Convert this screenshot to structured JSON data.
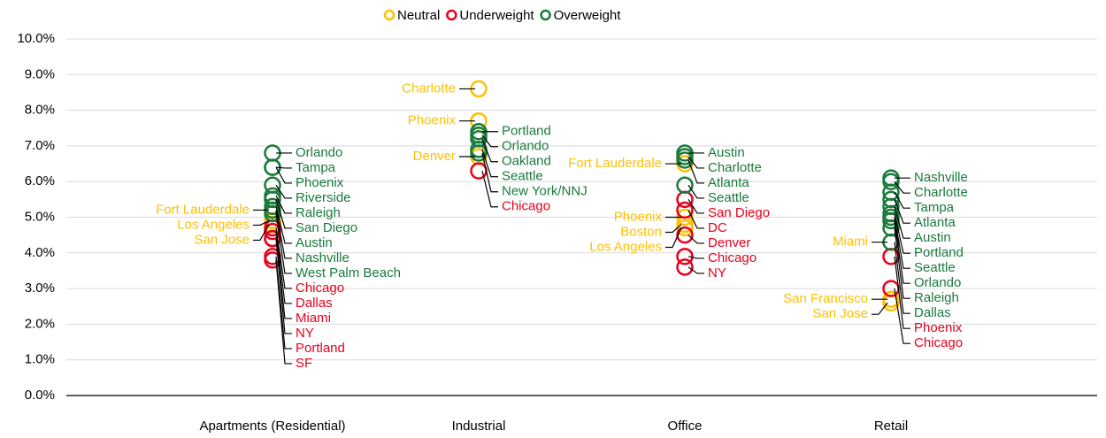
{
  "chart_data": {
    "type": "scatter",
    "categories": [
      "Apartments (Residential)",
      "Industrial",
      "Office",
      "Retail"
    ],
    "ylim": [
      0,
      10
    ],
    "yticks": [
      {
        "value": 0,
        "label": "0.0%"
      },
      {
        "value": 1,
        "label": "1.0%"
      },
      {
        "value": 2,
        "label": "2.0%"
      },
      {
        "value": 3,
        "label": "3.0%"
      },
      {
        "value": 4,
        "label": "4.0%"
      },
      {
        "value": 5,
        "label": "5.0%"
      },
      {
        "value": 6,
        "label": "6.0%"
      },
      {
        "value": 7,
        "label": "7.0%"
      },
      {
        "value": 8,
        "label": "8.0%"
      },
      {
        "value": 9,
        "label": "9.0%"
      },
      {
        "value": 10,
        "label": "10.0%"
      }
    ],
    "grid": true,
    "legend": "top",
    "series": [
      {
        "name": "Neutral",
        "color": "#ffc000",
        "x": [
          "Apartments (Residential)",
          "Apartments (Residential)",
          "Apartments (Residential)",
          "Industrial",
          "Industrial",
          "Industrial",
          "Office",
          "Office",
          "Office",
          "Office",
          "Retail",
          "Retail",
          "Retail"
        ],
        "labels": [
          "Fort Lauderdale",
          "Los Angeles",
          "San Jose",
          "Charlotte",
          "Phoenix",
          "Denver",
          "Fort Lauderdale",
          "Phoenix",
          "Boston",
          "Los Angeles",
          "Miami",
          "San Francisco",
          "San Jose"
        ],
        "values": [
          5.2,
          4.9,
          4.8,
          8.6,
          7.7,
          6.7,
          6.5,
          5.0,
          4.8,
          4.7,
          4.3,
          2.7,
          2.6
        ]
      },
      {
        "name": "Underweight",
        "color": "#e8001c",
        "x": [
          "Apartments (Residential)",
          "Apartments (Residential)",
          "Apartments (Residential)",
          "Apartments (Residential)",
          "Apartments (Residential)",
          "Apartments (Residential)",
          "Industrial",
          "Office",
          "Office",
          "Office",
          "Office",
          "Office",
          "Retail",
          "Retail"
        ],
        "labels": [
          "Dallas",
          "Miami",
          "Portland",
          "SF",
          "Chicago",
          "NY",
          "Chicago",
          "San Diego",
          "DC",
          "Denver",
          "Chicago",
          "NY",
          "Phoenix",
          "Chicago"
        ],
        "values": [
          4.6,
          4.4,
          3.9,
          3.8,
          4.7,
          4.4,
          6.3,
          5.5,
          5.2,
          4.5,
          3.9,
          3.6,
          3.9,
          3.0
        ]
      },
      {
        "name": "Overweight",
        "color": "#1a7a3c",
        "x": [
          "Apartments (Residential)",
          "Apartments (Residential)",
          "Apartments (Residential)",
          "Apartments (Residential)",
          "Apartments (Residential)",
          "Apartments (Residential)",
          "Apartments (Residential)",
          "Apartments (Residential)",
          "Apartments (Residential)",
          "Industrial",
          "Industrial",
          "Industrial",
          "Industrial",
          "Industrial",
          "Office",
          "Office",
          "Office",
          "Office",
          "Retail",
          "Retail",
          "Retail",
          "Retail",
          "Retail",
          "Retail",
          "Retail",
          "Retail",
          "Retail",
          "Retail"
        ],
        "labels": [
          "Orlando",
          "Tampa",
          "Phoenix",
          "Riverside",
          "Raleigh",
          "San Diego",
          "Austin",
          "Nashville",
          "West Palm Beach",
          "Portland",
          "Orlando",
          "Oakland",
          "New York/NNJ",
          "Seattle",
          "Austin",
          "Charlotte",
          "Atlanta",
          "Seattle",
          "Nashville",
          "Charlotte",
          "Tampa",
          "Atlanta",
          "Austin",
          "Portland",
          "Seattle",
          "Orlando",
          "Raleigh",
          "Dallas"
        ],
        "values": [
          6.8,
          6.4,
          6.4,
          5.9,
          5.6,
          5.5,
          5.3,
          5.2,
          5.1,
          7.4,
          7.3,
          7.2,
          6.8,
          6.9,
          6.8,
          6.7,
          6.6,
          5.9,
          6.1,
          6.0,
          5.7,
          5.5,
          5.3,
          5.1,
          5.0,
          4.9,
          4.7,
          4.3
        ]
      }
    ]
  }
}
